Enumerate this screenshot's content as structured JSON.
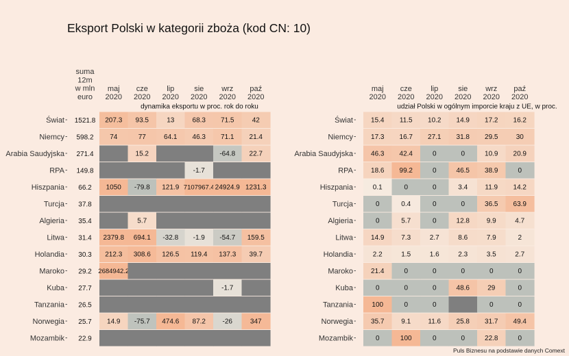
{
  "title": "Eksport Polski w kategorii zboża (kod CN: 10)",
  "source_note": "Puls Biznesu na podstawie danych Comext",
  "colors": {
    "background": "#fbebe1",
    "na": "#7f7f7f",
    "low": "#bdc1bb",
    "mid": "#f6ede3",
    "high": "#f5b895"
  },
  "sum_header": [
    "suma",
    "12m",
    "w mln",
    "euro"
  ],
  "chart_data": [
    {
      "type": "heatmap",
      "title": "dynamika eksportu w proc. rok do roku",
      "columns": [
        {
          "month": "maj",
          "year": "2020"
        },
        {
          "month": "cze",
          "year": "2020"
        },
        {
          "month": "lip",
          "year": "2020"
        },
        {
          "month": "sie",
          "year": "2020"
        },
        {
          "month": "wrz",
          "year": "2020"
        },
        {
          "month": "paź",
          "year": "2020"
        }
      ],
      "rows": [
        "Świat",
        "Niemcy",
        "Arabia Saudyjska",
        "RPA",
        "Hiszpania",
        "Turcja",
        "Algieria",
        "Litwa",
        "Holandia",
        "Maroko",
        "Kuba",
        "Tanzania",
        "Norwegia",
        "Mozambik"
      ],
      "sum_12m": [
        "1521.8",
        "598.2",
        "271.4",
        "149.8",
        "66.2",
        "37.8",
        "35.4",
        "31.4",
        "30.3",
        "29.2",
        "27.7",
        "26.5",
        "25.7",
        "22.9"
      ],
      "values": [
        [
          207.3,
          93.5,
          13,
          68.3,
          71.5,
          42
        ],
        [
          74,
          77,
          64.1,
          46.3,
          71.1,
          21.4
        ],
        [
          null,
          15.2,
          null,
          null,
          -64.8,
          22.7
        ],
        [
          null,
          null,
          null,
          -1.7,
          null,
          null
        ],
        [
          1050,
          -79.8,
          121.9,
          7107967.4,
          24924.9,
          1231.3
        ],
        [
          null,
          null,
          null,
          null,
          null,
          null
        ],
        [
          null,
          5.7,
          null,
          null,
          null,
          null
        ],
        [
          2379.8,
          694.1,
          -32.8,
          -1.9,
          -54.7,
          159.5
        ],
        [
          212.3,
          308.6,
          126.5,
          119.4,
          137.3,
          39.7
        ],
        [
          2684942.2,
          null,
          null,
          null,
          null,
          null
        ],
        [
          null,
          null,
          null,
          null,
          -1.7,
          null
        ],
        [
          null,
          null,
          null,
          null,
          null,
          null
        ],
        [
          14.9,
          -75.7,
          474.6,
          87.2,
          -26,
          347
        ],
        [
          null,
          null,
          null,
          null,
          null,
          null
        ]
      ]
    },
    {
      "type": "heatmap",
      "title": "udział Polski w ogólnym imporcie kraju z UE, w proc.",
      "columns": [
        {
          "month": "maj",
          "year": "2020"
        },
        {
          "month": "cze",
          "year": "2020"
        },
        {
          "month": "lip",
          "year": "2020"
        },
        {
          "month": "sie",
          "year": "2020"
        },
        {
          "month": "wrz",
          "year": "2020"
        },
        {
          "month": "paź",
          "year": "2020"
        }
      ],
      "rows": [
        "Świat",
        "Niemcy",
        "Arabia Saudyjska",
        "RPA",
        "Hiszpania",
        "Turcja",
        "Algieria",
        "Litwa",
        "Holandia",
        "Maroko",
        "Kuba",
        "Tanzania",
        "Norwegia",
        "Mozambik"
      ],
      "values": [
        [
          15.4,
          11.5,
          10.2,
          14.9,
          17.2,
          16.2
        ],
        [
          17.3,
          16.7,
          27.1,
          31.8,
          29.5,
          30
        ],
        [
          46.3,
          42.4,
          0,
          0,
          10.9,
          20.9
        ],
        [
          18.6,
          99.2,
          0,
          46.5,
          38.9,
          0
        ],
        [
          0.1,
          0,
          0,
          3.4,
          11.9,
          14.2
        ],
        [
          0,
          0.4,
          0,
          0,
          36.5,
          63.9
        ],
        [
          0,
          5.7,
          0,
          12.8,
          9.9,
          4.7
        ],
        [
          14.9,
          7.3,
          2.7,
          8.6,
          7.9,
          2
        ],
        [
          2.2,
          1.5,
          1.6,
          2.3,
          3.5,
          2.7
        ],
        [
          21.4,
          0,
          0,
          0,
          0,
          0
        ],
        [
          0,
          0,
          0,
          48.6,
          29,
          0
        ],
        [
          100,
          0,
          0,
          null,
          0,
          0
        ],
        [
          35.7,
          9.1,
          11.6,
          25.8,
          31.7,
          49.4
        ],
        [
          0,
          100,
          0,
          0,
          22.8,
          0
        ]
      ]
    }
  ]
}
